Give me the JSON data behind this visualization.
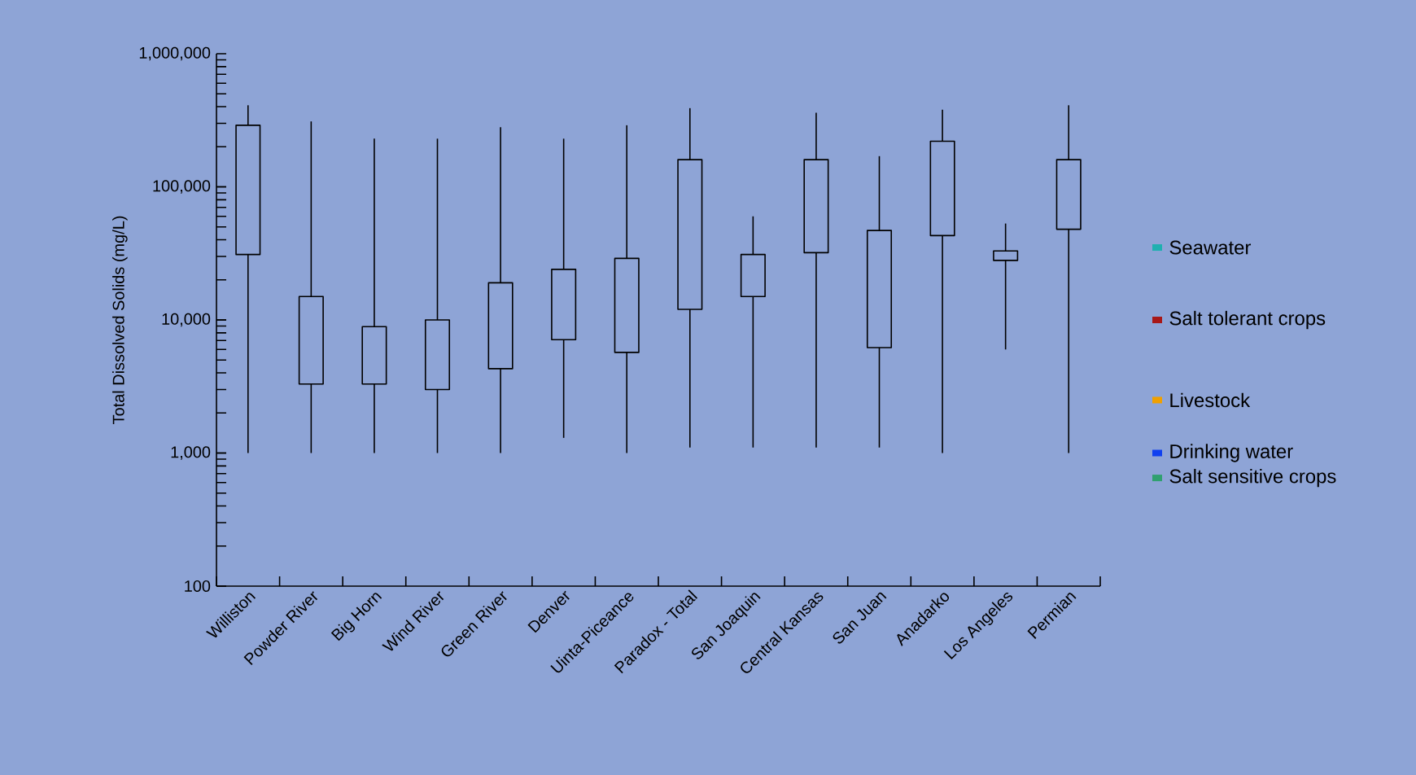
{
  "chart_data": {
    "type": "box",
    "ylabel": "Total Dissolved Solids (mg/L)",
    "log": "y",
    "ylim": [
      100,
      1000000
    ],
    "yticks": [
      {
        "value": 100,
        "label": "100"
      },
      {
        "value": 1000,
        "label": "1,000"
      },
      {
        "value": 10000,
        "label": "10,000"
      },
      {
        "value": 100000,
        "label": "100,000"
      },
      {
        "value": 1000000,
        "label": "1,000,000"
      }
    ],
    "categories": [
      "Williston",
      "Powder River",
      "Big Horn",
      "Wind River",
      "Green River",
      "Denver",
      "Uinta-Piceance",
      "Paradox - Total",
      "San Joaquin",
      "Central Kansas",
      "San Juan",
      "Anadarko",
      "Los Angeles",
      "Permian"
    ],
    "boxes": [
      {
        "low": 1000,
        "q1": 31000,
        "q3": 290000,
        "high": 410000
      },
      {
        "low": 1000,
        "q1": 3300,
        "q3": 15000,
        "high": 310000
      },
      {
        "low": 1000,
        "q1": 3300,
        "q3": 8900,
        "high": 230000
      },
      {
        "low": 1000,
        "q1": 3000,
        "q3": 10000,
        "high": 230000
      },
      {
        "low": 1000,
        "q1": 4300,
        "q3": 19000,
        "high": 280000
      },
      {
        "low": 1300,
        "q1": 7100,
        "q3": 24000,
        "high": 230000
      },
      {
        "low": 1000,
        "q1": 5700,
        "q3": 29000,
        "high": 290000
      },
      {
        "low": 1100,
        "q1": 12000,
        "q3": 160000,
        "high": 390000
      },
      {
        "low": 1100,
        "q1": 15000,
        "q3": 31000,
        "high": 60000
      },
      {
        "low": 1100,
        "q1": 32000,
        "q3": 160000,
        "high": 360000
      },
      {
        "low": 1100,
        "q1": 6200,
        "q3": 47000,
        "high": 170000
      },
      {
        "low": 1000,
        "q1": 43000,
        "q3": 220000,
        "high": 380000
      },
      {
        "low": 6000,
        "q1": 28000,
        "q3": 33000,
        "high": 53000
      },
      {
        "low": 1000,
        "q1": 48000,
        "q3": 160000,
        "high": 410000
      }
    ],
    "ref_lines": [
      {
        "axis": "y",
        "value": 35000,
        "label": "Seawater",
        "color": "#1fb0b0"
      },
      {
        "axis": "y",
        "value": 10000,
        "label": "Salt tolerant crops",
        "color": "#a81818"
      },
      {
        "axis": "y",
        "value": 2500,
        "label": "Livestock",
        "color": "#f0a000"
      },
      {
        "axis": "y",
        "value": 1000,
        "label": "Drinking water",
        "color": "#1040f0"
      },
      {
        "axis": "y",
        "value": 650,
        "label": "Salt sensitive crops",
        "color": "#30a070"
      }
    ],
    "grid": false
  }
}
